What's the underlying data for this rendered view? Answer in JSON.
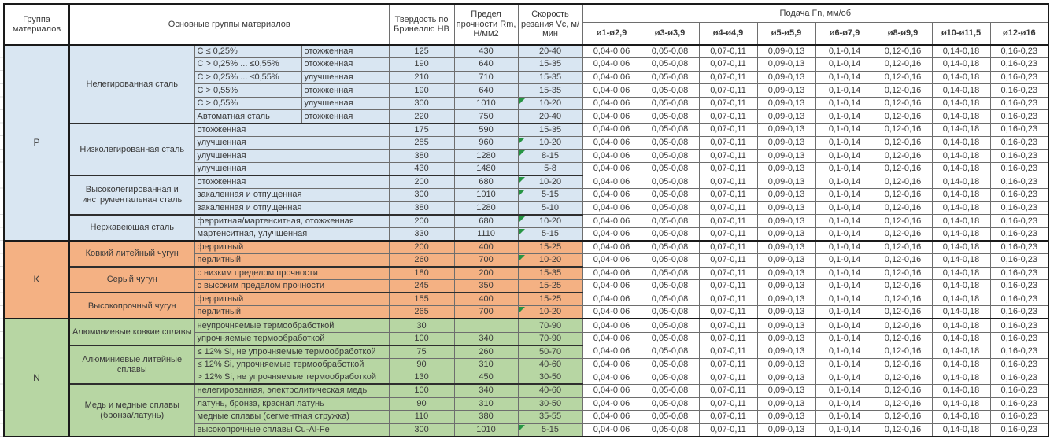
{
  "table": {
    "header": {
      "col_group": "Группа материалов",
      "col_main": "Основные группы материалов",
      "col_hb": "Твердость по Бринеллю HB",
      "col_rm": "Предел прочности Rm, Н/мм2",
      "col_vc": "Скорость резания Vc, м/мин",
      "feed_title": "Подача Fn, мм/об",
      "feed_cols": [
        "ø1-ø2,9",
        "ø3-ø3,9",
        "ø4-ø4,9",
        "ø5-ø5,9",
        "ø6-ø7,9",
        "ø8-ø9,9",
        "ø10-ø11,5",
        "ø12-ø16"
      ]
    },
    "feed_values": [
      "0,04-0,06",
      "0,05-0,08",
      "0,07-0,11",
      "0,09-0,13",
      "0,1-0,14",
      "0,12-0,16",
      "0,14-0,18",
      "0,16-0,23"
    ],
    "flag_color": "#279544",
    "groups": [
      {
        "letter": "P",
        "color": "#d9e6f2",
        "families": [
          {
            "name": "Нелегированная сталь",
            "rows": [
              {
                "c1": "C ≤ 0,25%",
                "c2": "отожженная",
                "hb": "125",
                "rm": "430",
                "vc": "20-40",
                "flag": false
              },
              {
                "c1": "C > 0,25% ... ≤0,55%",
                "c2": "отожженная",
                "hb": "190",
                "rm": "640",
                "vc": "15-35",
                "flag": false
              },
              {
                "c1": "C > 0,25% ... ≤0,55%",
                "c2": "улучшенная",
                "hb": "210",
                "rm": "710",
                "vc": "15-35",
                "flag": false
              },
              {
                "c1": "C > 0,55%",
                "c2": "отожженная",
                "hb": "190",
                "rm": "640",
                "vc": "15-35",
                "flag": false
              },
              {
                "c1": "C > 0,55%",
                "c2": "улучшенная",
                "hb": "300",
                "rm": "1010",
                "vc": "10-20",
                "flag": true
              },
              {
                "c1": "Автоматная сталь",
                "c2": "отожженная",
                "hb": "220",
                "rm": "750",
                "vc": "20-40",
                "flag": false
              }
            ]
          },
          {
            "name": "Низколегированная сталь",
            "rows": [
              {
                "desc": "отожженная",
                "hb": "175",
                "rm": "590",
                "vc": "15-35",
                "flag": false
              },
              {
                "desc": "улучшенная",
                "hb": "285",
                "rm": "960",
                "vc": "10-20",
                "flag": true
              },
              {
                "desc": "улучшенная",
                "hb": "380",
                "rm": "1280",
                "vc": "8-15",
                "flag": true
              },
              {
                "desc": "улучшенная",
                "hb": "430",
                "rm": "1480",
                "vc": "5-8",
                "flag": false
              }
            ]
          },
          {
            "name": "Высоколегированная и инструментальная сталь",
            "rows": [
              {
                "desc": "отожженная",
                "hb": "200",
                "rm": "680",
                "vc": "10-20",
                "flag": true
              },
              {
                "desc": "закаленная и отпущенная",
                "hb": "300",
                "rm": "1010",
                "vc": "5-15",
                "flag": true
              },
              {
                "desc": "закаленная и отпущенная",
                "hb": "380",
                "rm": "1280",
                "vc": "5-10",
                "flag": false
              }
            ]
          },
          {
            "name": "Нержавеющая сталь",
            "rows": [
              {
                "desc": "ферритная/мартенситная, отожженная",
                "hb": "200",
                "rm": "680",
                "vc": "10-20",
                "flag": true
              },
              {
                "desc": "мартенситная, улучшенная",
                "hb": "330",
                "rm": "1110",
                "vc": "5-15",
                "flag": true
              }
            ]
          }
        ]
      },
      {
        "letter": "K",
        "color": "#f4b183",
        "families": [
          {
            "name": "Ковкий литейный чугун",
            "rows": [
              {
                "desc": "ферритный",
                "hb": "200",
                "rm": "400",
                "vc": "15-25",
                "flag": false
              },
              {
                "desc": "перлитный",
                "hb": "260",
                "rm": "700",
                "vc": "10-20",
                "flag": true
              }
            ]
          },
          {
            "name": "Серый чугун",
            "rows": [
              {
                "desc": "с низким пределом прочности",
                "hb": "180",
                "rm": "200",
                "vc": "15-35",
                "flag": false
              },
              {
                "desc": "с высоким пределом прочности",
                "hb": "245",
                "rm": "350",
                "vc": "15-25",
                "flag": false
              }
            ]
          },
          {
            "name": "Высокопрочный чугун",
            "rows": [
              {
                "desc": "ферритный",
                "hb": "155",
                "rm": "400",
                "vc": "15-25",
                "flag": false
              },
              {
                "desc": "перлитный",
                "hb": "265",
                "rm": "700",
                "vc": "10-20",
                "flag": true
              }
            ]
          }
        ]
      },
      {
        "letter": "N",
        "color": "#b7d6a3",
        "families": [
          {
            "name": "Алюминиевые ковкие сплавы",
            "rows": [
              {
                "desc": "неупрочняемые термообработкой",
                "hb": "30",
                "rm": "",
                "vc": "70-90",
                "flag": false
              },
              {
                "desc": "упрочняемые термообработкой",
                "hb": "100",
                "rm": "340",
                "vc": "70-90",
                "flag": false
              }
            ]
          },
          {
            "name": "Алюминиевые литейные сплавы",
            "rows": [
              {
                "desc": "≤ 12% Si, не упрочняемые термообработкой",
                "hb": "75",
                "rm": "260",
                "vc": "50-70",
                "flag": false
              },
              {
                "desc": "≤ 12% Si, упрочняемые термообработкой",
                "hb": "90",
                "rm": "310",
                "vc": "40-60",
                "flag": false
              },
              {
                "desc": "> 12% Si, не упрочняемые термообработкой",
                "hb": "130",
                "rm": "450",
                "vc": "30-50",
                "flag": false
              }
            ]
          },
          {
            "name": "Медь и медные сплавы (бронза/латунь)",
            "rows": [
              {
                "desc": "нелегированная, электролитическая медь",
                "hb": "100",
                "rm": "340",
                "vc": "40-60",
                "flag": false
              },
              {
                "desc": "латунь, бронза, красная латунь",
                "hb": "90",
                "rm": "310",
                "vc": "30-50",
                "flag": false
              },
              {
                "desc": "медные сплавы (сегментная стружка)",
                "hb": "110",
                "rm": "380",
                "vc": "35-55",
                "flag": false
              },
              {
                "desc": "высокопрочные сплавы Cu-Al-Fe",
                "hb": "300",
                "rm": "1010",
                "vc": "5-15",
                "flag": true
              }
            ]
          }
        ]
      }
    ]
  }
}
